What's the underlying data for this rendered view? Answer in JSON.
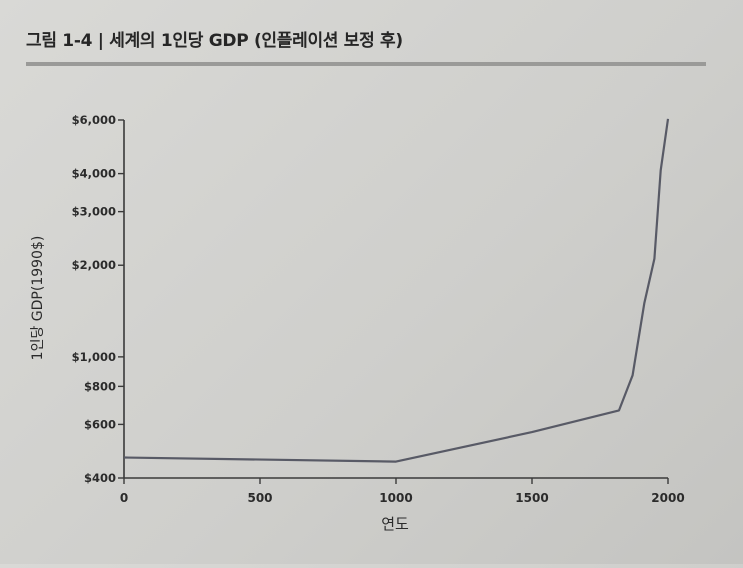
{
  "figure": {
    "title": "그림 1-4 | 세계의 1인당 GDP (인플레이션 보정 후)"
  },
  "chart_data": {
    "type": "line",
    "title": "그림 1-4 | 세계의 1인당 GDP (인플레이션 보정 후)",
    "xlabel": "연도",
    "ylabel": "1인당 GDP(1990$)",
    "xlim": [
      0,
      2000
    ],
    "ylim": [
      400,
      6000
    ],
    "yscale": "log",
    "x_ticks": [
      0,
      500,
      1000,
      1500,
      2000
    ],
    "y_ticks": [
      {
        "value": 400,
        "label": "$400"
      },
      {
        "value": 600,
        "label": "$600"
      },
      {
        "value": 800,
        "label": "$800"
      },
      {
        "value": 1000,
        "label": "$1,000"
      },
      {
        "value": 2000,
        "label": "$2,000"
      },
      {
        "value": 3000,
        "label": "$3,000"
      },
      {
        "value": 4000,
        "label": "$4,000"
      },
      {
        "value": 6000,
        "label": "$6,000"
      }
    ],
    "grid": false,
    "series": [
      {
        "x": [
          0,
          1000,
          1500,
          1820,
          1870,
          1913,
          1950,
          1973,
          2000
        ],
        "y": [
          467,
          453,
          566,
          667,
          870,
          1500,
          2100,
          4100,
          6050
        ]
      }
    ],
    "colors": {
      "line": "#585a66",
      "axis": "#3a3a3a"
    }
  }
}
